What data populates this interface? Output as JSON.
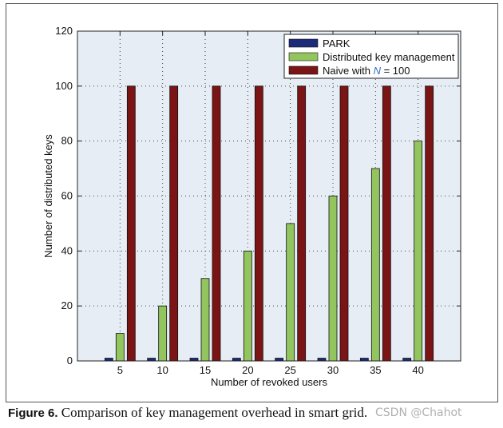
{
  "chart_data": {
    "type": "bar",
    "title": "",
    "xlabel": "Number of revoked users",
    "ylabel": "Number of distributed keys",
    "categories": [
      "5",
      "10",
      "15",
      "20",
      "25",
      "30",
      "35",
      "40"
    ],
    "ylim": [
      0,
      120
    ],
    "yticks": [
      "0",
      "20",
      "40",
      "60",
      "80",
      "100",
      "120"
    ],
    "grid": true,
    "legend_position": "top-right",
    "series": [
      {
        "name": "PARK",
        "color": "#1c2a7a",
        "values": [
          1,
          1,
          1,
          1,
          1,
          1,
          1,
          1
        ]
      },
      {
        "name": "Distributed key management",
        "color": "#92c55e",
        "values": [
          10,
          20,
          30,
          40,
          50,
          60,
          70,
          80
        ]
      },
      {
        "name_prefix": "Naive with ",
        "name_var": "N",
        "name_suffix": " = 100",
        "color": "#7b1414",
        "values": [
          100,
          100,
          100,
          100,
          100,
          100,
          100,
          100
        ]
      }
    ],
    "plot_background": "#e6edf5",
    "name_var_color": "#3a6fc4"
  },
  "caption": {
    "label": "Figure 6.",
    "text": " Comparison of key management overhead in smart grid."
  },
  "watermark": "CSDN @Chahot"
}
